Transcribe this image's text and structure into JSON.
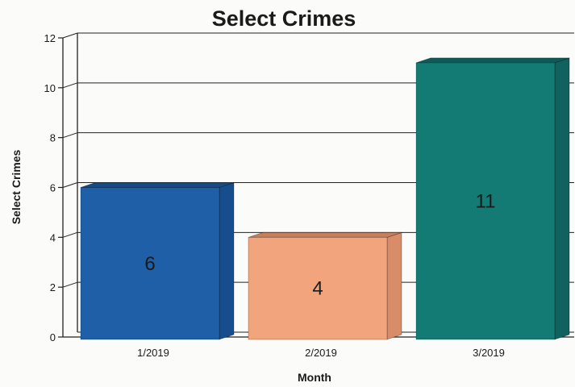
{
  "chart_data": {
    "type": "bar",
    "title": "Select Crimes",
    "xlabel": "Month",
    "ylabel": "Select Crimes",
    "categories": [
      "1/2019",
      "2/2019",
      "3/2019"
    ],
    "values": [
      6,
      4,
      11
    ],
    "data_labels": [
      "6",
      "4",
      "11"
    ],
    "yticks": [
      "0",
      "2",
      "4",
      "6",
      "8",
      "10",
      "12"
    ],
    "ylim": [
      0,
      12
    ],
    "grid": true,
    "legend": "none",
    "style": "3d-bar",
    "bar_colors": [
      "#1f5fa8",
      "#f2a57c",
      "#137a74"
    ],
    "bar_top_colors": [
      "#174b86",
      "#c97f5c",
      "#0e5a56"
    ],
    "bar_side_colors": [
      "#164d8d",
      "#d98c68",
      "#0f625e"
    ]
  }
}
